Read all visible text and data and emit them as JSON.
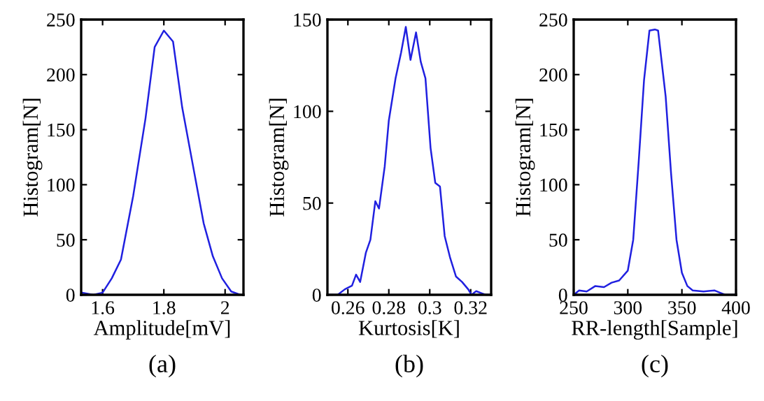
{
  "chart_data": [
    {
      "type": "line",
      "xlabel": "Amplitude[mV]",
      "ylabel": "Histogram[N]",
      "annotations": [
        "(a)"
      ],
      "xlim": [
        1.53,
        2.06
      ],
      "ylim": [
        0,
        250
      ],
      "xticks": [
        1.6,
        1.8,
        2
      ],
      "yticks": [
        0,
        50,
        100,
        150,
        200,
        250
      ],
      "grid": false,
      "legend": false,
      "marker": "none",
      "line_style": "solid",
      "series": [
        {
          "color": "#2020e0",
          "x": [
            1.53,
            1.57,
            1.6,
            1.63,
            1.66,
            1.7,
            1.74,
            1.77,
            1.8,
            1.83,
            1.86,
            1.9,
            1.93,
            1.96,
            1.99,
            2.02,
            2.05
          ],
          "values": [
            2,
            0,
            2,
            15,
            32,
            90,
            160,
            225,
            240,
            230,
            170,
            110,
            65,
            35,
            15,
            3,
            0
          ]
        }
      ]
    },
    {
      "type": "line",
      "xlabel": "Kurtosis[K]",
      "ylabel": "Histogram[N]",
      "annotations": [
        "(b)"
      ],
      "xlim": [
        0.25,
        0.33
      ],
      "ylim": [
        0,
        150
      ],
      "xticks": [
        0.26,
        0.28,
        0.3,
        0.32
      ],
      "yticks": [
        0,
        50,
        100,
        150
      ],
      "grid": false,
      "legend": false,
      "marker": "none",
      "line_style": "solid",
      "series": [
        {
          "color": "#2020e0",
          "x": [
            0.25,
            0.255,
            0.2585,
            0.262,
            0.264,
            0.266,
            0.2688,
            0.271,
            0.2734,
            0.2752,
            0.278,
            0.28,
            0.2833,
            0.286,
            0.2883,
            0.2906,
            0.2933,
            0.2956,
            0.2979,
            0.3004,
            0.3027,
            0.305,
            0.3073,
            0.31,
            0.3128,
            0.3158,
            0.3188,
            0.3204,
            0.3227,
            0.325,
            0.3273,
            0.33
          ],
          "values": [
            0,
            0,
            3,
            5,
            11,
            7,
            23,
            30,
            51,
            47,
            70,
            95,
            118,
            132,
            146,
            128,
            143,
            127,
            118,
            80,
            61,
            59,
            32,
            20,
            10,
            7,
            3,
            0,
            2,
            1,
            0,
            0
          ]
        }
      ]
    },
    {
      "type": "line",
      "xlabel": "RR-length[Sample]",
      "ylabel": "Histogram[N]",
      "annotations": [
        "(c)"
      ],
      "xlim": [
        250,
        400
      ],
      "ylim": [
        0,
        250
      ],
      "xticks": [
        250,
        300,
        350,
        400
      ],
      "yticks": [
        0,
        50,
        100,
        150,
        200,
        250
      ],
      "grid": false,
      "legend": false,
      "marker": "none",
      "line_style": "solid",
      "series": [
        {
          "color": "#2020e0",
          "x": [
            250,
            255,
            262,
            270,
            278,
            285,
            292,
            300,
            305,
            310,
            315,
            320,
            325,
            328,
            335,
            340,
            345,
            350,
            355,
            360,
            370,
            380,
            385,
            390,
            400
          ],
          "values": [
            0,
            4,
            3,
            8,
            7,
            11,
            13,
            22,
            50,
            120,
            195,
            240,
            241,
            240,
            180,
            110,
            50,
            20,
            8,
            4,
            3,
            4,
            2,
            0,
            0
          ]
        }
      ]
    }
  ]
}
